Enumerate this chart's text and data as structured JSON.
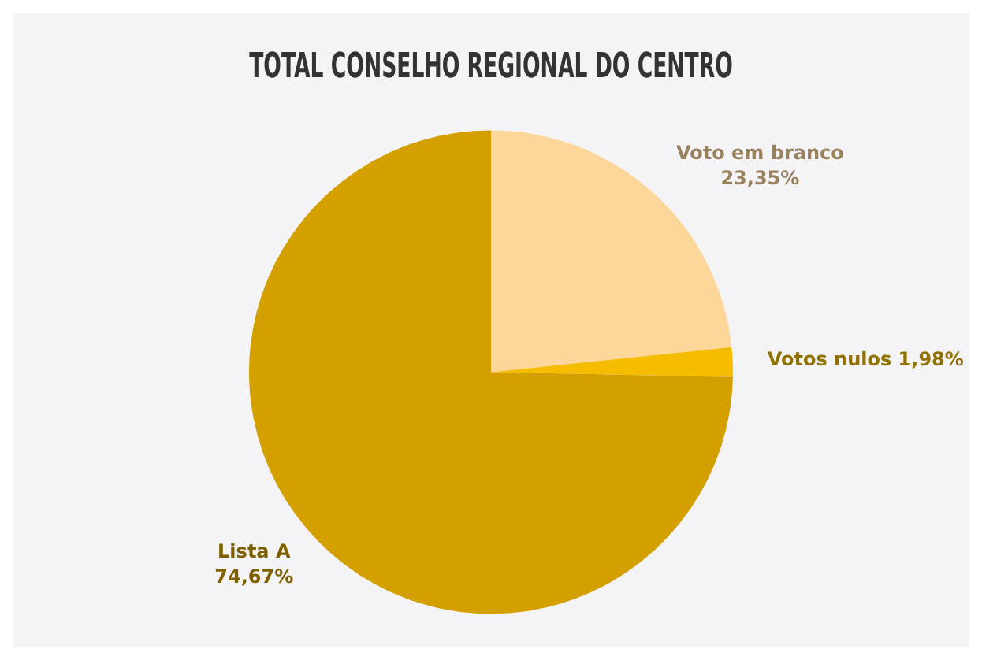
{
  "chart_data": {
    "type": "pie",
    "title": "TOTAL CONSELHO REGIONAL DO CENTRO",
    "categories": [
      "Voto em branco",
      "Votos nulos",
      "Lista A"
    ],
    "values": [
      23.35,
      1.98,
      74.67
    ],
    "colors": [
      "#fdd79a",
      "#f5bc00",
      "#d4a000"
    ],
    "value_labels": [
      "23,35%",
      "1,98%",
      "74,67%"
    ],
    "legend": false
  }
}
